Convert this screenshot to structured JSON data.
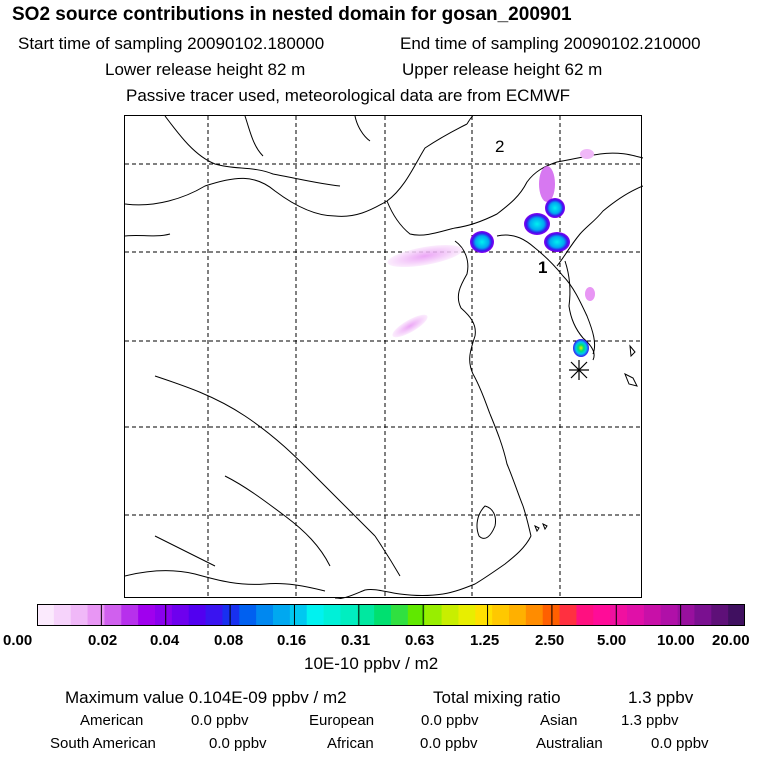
{
  "header": {
    "title": "SO2 source contributions in nested domain for gosan_200901",
    "start_time": "Start time of sampling 20090102.180000",
    "end_time": "End time of sampling 20090102.210000",
    "lower_release": "Lower release height   82 m",
    "upper_release": "Upper release height   62 m",
    "tracer_note": "Passive tracer used, meteorological data are from ECMWF"
  },
  "map": {
    "markers": [
      {
        "label": "2"
      },
      {
        "label": "1"
      }
    ],
    "receptor_symbol": "asterisk-icon"
  },
  "colorbar": {
    "colors": [
      "#fbeafd",
      "#f6d3fb",
      "#f0b8f8",
      "#e896f4",
      "#d060ee",
      "#b730ec",
      "#a000ee",
      "#8a00ee",
      "#6e00ee",
      "#5200f0",
      "#3a14f0",
      "#1830f0",
      "#0060f0",
      "#0088f0",
      "#00a8f0",
      "#00c8f0",
      "#00f2f0",
      "#00f0d8",
      "#00eec0",
      "#00e8a0",
      "#00e070",
      "#30e040",
      "#60e800",
      "#98ee00",
      "#c8ee00",
      "#e8ee00",
      "#ffe000",
      "#ffc800",
      "#ffb000",
      "#ff8c00",
      "#ff6000",
      "#ff3040",
      "#ff1080",
      "#ff0c98",
      "#f010a0",
      "#e010a8",
      "#c810a8",
      "#b010a8",
      "#98109e",
      "#7a1090",
      "#5e1078",
      "#401060"
    ],
    "tick_labels": [
      "0.00",
      "0.02",
      "0.04",
      "0.08",
      "0.16",
      "0.31",
      "0.63",
      "1.25",
      "2.50",
      "5.00",
      "10.00",
      "20.00"
    ],
    "units": "10E-10 ppbv / m2"
  },
  "stats": {
    "max_label": "Maximum value  0.104E-09 ppbv / m2",
    "total_label": "Total mixing ratio",
    "total_value": "1.3 ppbv",
    "regions": [
      {
        "name": "American",
        "value": "0.0 ppbv"
      },
      {
        "name": "European",
        "value": "0.0 ppbv"
      },
      {
        "name": "Asian",
        "value": "1.3 ppbv"
      },
      {
        "name": "South American",
        "value": "0.0 ppbv"
      },
      {
        "name": "African",
        "value": "0.0 ppbv"
      },
      {
        "name": "Australian",
        "value": "0.0 ppbv"
      }
    ]
  }
}
